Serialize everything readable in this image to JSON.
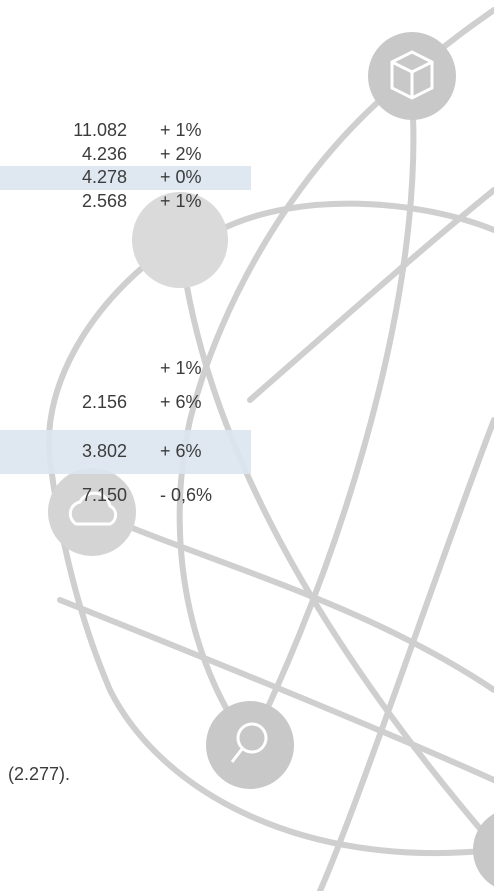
{
  "rows": [
    {
      "value": "11.082",
      "change": "+ 1%"
    },
    {
      "value": "4.236",
      "change": "+ 2%"
    },
    {
      "value": "4.278",
      "change": "+ 0%"
    },
    {
      "value": "2.568",
      "change": "+ 1%"
    },
    {
      "change": "+ 1%"
    },
    {
      "value": "2.156",
      "change": "+ 6%"
    },
    {
      "value": "3.802",
      "change": "+ 6%"
    },
    {
      "value": "7.150",
      "change": "- 0,6%"
    }
  ],
  "footnote": "(2.277)."
}
